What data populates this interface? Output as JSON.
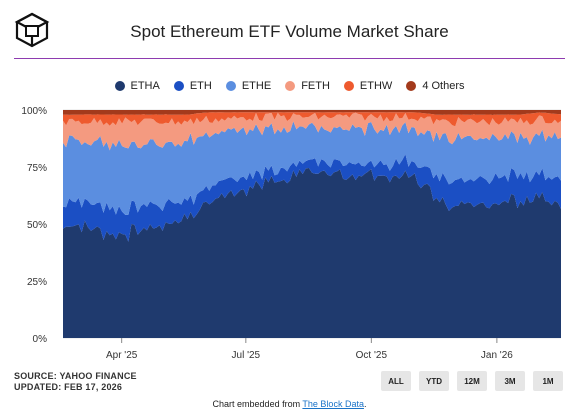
{
  "header": {
    "title": "Spot Ethereum ETF Volume Market Share",
    "logo_icon": "the-block-cube-logo-icon"
  },
  "legend": [
    {
      "name": "ETHA",
      "color": "#1f3a6e"
    },
    {
      "name": "ETH",
      "color": "#1b4fc4"
    },
    {
      "name": "ETHE",
      "color": "#5b8ee0"
    },
    {
      "name": "FETH",
      "color": "#f49a80"
    },
    {
      "name": "ETHW",
      "color": "#ee5a2e"
    },
    {
      "name": "4 Others",
      "color": "#a33a1c"
    }
  ],
  "footer": {
    "source": "SOURCE: YAHOO FINANCE",
    "updated": "UPDATED: FEB 17, 2026",
    "embed_prefix": "Chart embedded from ",
    "embed_link": "The Block Data",
    "embed_suffix": "."
  },
  "range_buttons": [
    "ALL",
    "YTD",
    "12M",
    "3M",
    "1M"
  ],
  "chart_data": {
    "type": "area",
    "stacked": true,
    "title": "Spot Ethereum ETF Volume Market Share",
    "xlabel": "",
    "ylabel": "",
    "ylim": [
      0,
      100
    ],
    "y_ticks": [
      "0%",
      "25%",
      "50%",
      "75%",
      "100%"
    ],
    "x_ticks": [
      "Apr '25",
      "Jul '25",
      "Oct '25",
      "Jan '26"
    ],
    "x_tick_dates": [
      "2025-04-01",
      "2025-07-01",
      "2025-10-01",
      "2026-01-01"
    ],
    "x_range": [
      "2025-02-17",
      "2026-02-17"
    ],
    "grid": true,
    "legend_position": "top",
    "x": [
      "2025-02-17",
      "2025-03-01",
      "2025-03-15",
      "2025-04-01",
      "2025-04-15",
      "2025-05-01",
      "2025-05-15",
      "2025-06-01",
      "2025-06-15",
      "2025-07-01",
      "2025-07-15",
      "2025-08-01",
      "2025-08-15",
      "2025-09-01",
      "2025-09-15",
      "2025-10-01",
      "2025-10-15",
      "2025-11-01",
      "2025-11-15",
      "2025-12-01",
      "2025-12-15",
      "2026-01-01",
      "2026-01-15",
      "2026-02-01",
      "2026-02-17"
    ],
    "series": [
      {
        "name": "ETHA",
        "values": [
          48,
          50,
          47,
          46,
          48,
          50,
          53,
          58,
          63,
          65,
          68,
          70,
          72,
          72,
          71,
          72,
          71,
          72,
          60,
          58,
          60,
          57,
          60,
          62,
          58
        ]
      },
      {
        "name": "ETH",
        "values": [
          10,
          10,
          11,
          10,
          10,
          9,
          8,
          7,
          6,
          6,
          5,
          5,
          5,
          5,
          5,
          5,
          6,
          6,
          10,
          11,
          10,
          12,
          11,
          10,
          12
        ]
      },
      {
        "name": "ETHE",
        "values": [
          28,
          27,
          28,
          28,
          27,
          27,
          26,
          24,
          21,
          20,
          18,
          17,
          15,
          15,
          16,
          15,
          15,
          14,
          18,
          18,
          18,
          18,
          17,
          17,
          18
        ]
      },
      {
        "name": "FETH",
        "values": [
          9,
          8,
          9,
          11,
          10,
          9,
          8,
          7,
          6,
          6,
          6,
          5,
          5,
          5,
          5,
          5,
          5,
          5,
          7,
          8,
          7,
          8,
          7,
          7,
          7
        ]
      },
      {
        "name": "ETHW",
        "values": [
          3,
          3,
          3,
          3,
          3,
          3,
          3,
          3,
          3,
          2,
          2,
          2,
          2,
          2,
          2,
          2,
          2,
          2,
          3,
          3,
          3,
          3,
          3,
          3,
          3
        ]
      },
      {
        "name": "4 Others",
        "values": [
          2,
          2,
          2,
          2,
          2,
          2,
          2,
          1,
          1,
          1,
          1,
          1,
          1,
          1,
          1,
          1,
          1,
          1,
          2,
          2,
          2,
          2,
          2,
          1,
          2
        ]
      }
    ]
  }
}
